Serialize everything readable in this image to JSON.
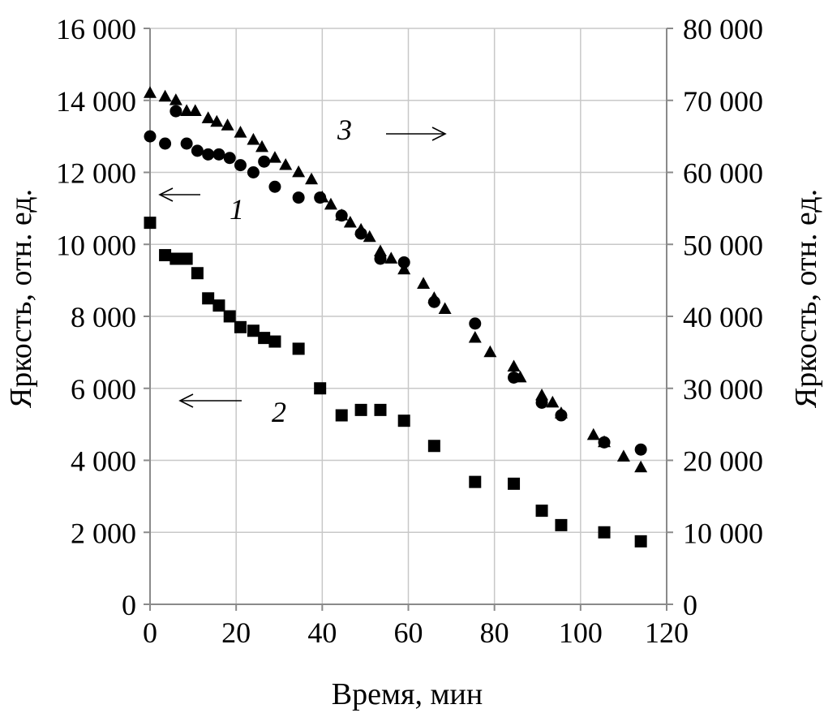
{
  "chart_data": {
    "type": "scatter",
    "xlabel": "Время, мин",
    "ylabel_left": "Яркость, отн. ед.",
    "ylabel_right": "Яркость, отн. ед.",
    "xlim": [
      0,
      120
    ],
    "ylim_left": [
      0,
      16000
    ],
    "ylim_right": [
      0,
      80000
    ],
    "x_ticks": [
      {
        "value": 0,
        "label": "0"
      },
      {
        "value": 20,
        "label": "20"
      },
      {
        "value": 40,
        "label": "40"
      },
      {
        "value": 60,
        "label": "60"
      },
      {
        "value": 80,
        "label": "80"
      },
      {
        "value": 100,
        "label": "100"
      },
      {
        "value": 120,
        "label": "120"
      }
    ],
    "y_left_ticks": [
      {
        "value": 0,
        "label": "0"
      },
      {
        "value": 2000,
        "label": "2 000"
      },
      {
        "value": 4000,
        "label": "4 000"
      },
      {
        "value": 6000,
        "label": "6 000"
      },
      {
        "value": 8000,
        "label": "8 000"
      },
      {
        "value": 10000,
        "label": "10 000"
      },
      {
        "value": 12000,
        "label": "12 000"
      },
      {
        "value": 14000,
        "label": "14 000"
      },
      {
        "value": 16000,
        "label": "16 000"
      }
    ],
    "y_right_ticks": [
      {
        "value": 0,
        "label": "0"
      },
      {
        "value": 10000,
        "label": "10 000"
      },
      {
        "value": 20000,
        "label": "20 000"
      },
      {
        "value": 30000,
        "label": "30 000"
      },
      {
        "value": 40000,
        "label": "40 000"
      },
      {
        "value": 50000,
        "label": "50 000"
      },
      {
        "value": 60000,
        "label": "60 000"
      },
      {
        "value": 70000,
        "label": "70 000"
      },
      {
        "value": 80000,
        "label": "80 000"
      }
    ],
    "grid": true,
    "series": [
      {
        "label": "1",
        "marker": "circle",
        "axis": "left",
        "arrow": "left",
        "x": [
          0,
          3.5,
          6,
          8.5,
          11,
          13.5,
          16,
          18.5,
          21,
          24,
          26.5,
          29,
          34.5,
          39.5,
          44.5,
          49,
          53.5,
          59,
          66,
          75.5,
          84.5,
          91,
          95.5,
          105.5,
          114
        ],
        "y": [
          13000,
          12800,
          13700,
          12800,
          12600,
          12500,
          12500,
          12400,
          12200,
          12000,
          12300,
          11600,
          11300,
          11300,
          10800,
          10300,
          9600,
          9500,
          8400,
          7800,
          6300,
          5600,
          5250,
          4500,
          4300
        ]
      },
      {
        "label": "2",
        "marker": "square",
        "axis": "left",
        "arrow": "left",
        "x": [
          0,
          3.5,
          6,
          8.5,
          11,
          13.5,
          16,
          18.5,
          21,
          24,
          26.5,
          29,
          34.5,
          39.5,
          44.5,
          49,
          53.5,
          59,
          66,
          75.5,
          84.5,
          91,
          95.5,
          105.5,
          114
        ],
        "y": [
          10600,
          9700,
          9600,
          9600,
          9200,
          8500,
          8300,
          8000,
          7700,
          7600,
          7400,
          7300,
          7100,
          6000,
          5250,
          5400,
          5400,
          5100,
          4400,
          3400,
          3350,
          2600,
          2200,
          2000,
          1750
        ]
      },
      {
        "label": "3",
        "marker": "triangle",
        "axis": "right",
        "arrow": "right",
        "x": [
          0,
          3.5,
          6,
          8.5,
          10.5,
          13.5,
          15.5,
          18,
          21,
          24,
          26,
          29,
          31.5,
          34.5,
          37.5,
          40,
          42,
          44.5,
          46.5,
          49,
          51,
          53.5,
          56,
          59,
          63.5,
          66,
          68.5,
          75.5,
          79,
          84.5,
          86,
          91,
          93.5,
          95.5,
          103,
          105.5,
          110,
          114
        ],
        "y": [
          71000,
          70500,
          70000,
          68500,
          68500,
          67500,
          67000,
          66500,
          65500,
          64500,
          63500,
          62000,
          61000,
          60000,
          59000,
          56500,
          55500,
          54000,
          53000,
          52000,
          51000,
          49000,
          48000,
          46500,
          44500,
          42500,
          41000,
          37000,
          35000,
          33000,
          31500,
          29000,
          28000,
          26500,
          23500,
          22500,
          20500,
          19000
        ]
      }
    ]
  }
}
